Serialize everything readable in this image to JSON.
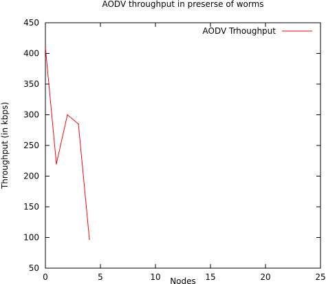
{
  "chart_data": {
    "type": "line",
    "title": "AODV throughput in preserse of worms",
    "xlabel": "Nodes",
    "ylabel": "Throughput (in kbps)",
    "xlim": [
      0,
      25
    ],
    "ylim": [
      50,
      450
    ],
    "xticks": [
      0,
      5,
      10,
      15,
      20,
      25
    ],
    "yticks": [
      50,
      100,
      150,
      200,
      250,
      300,
      350,
      400,
      450
    ],
    "grid": false,
    "legend_position": "top-right",
    "series": [
      {
        "name": "AODV Trhoughput",
        "color": "#ff0000",
        "x": [
          0,
          1,
          2,
          3,
          4
        ],
        "y": [
          410,
          220,
          300,
          285,
          97
        ]
      }
    ]
  }
}
